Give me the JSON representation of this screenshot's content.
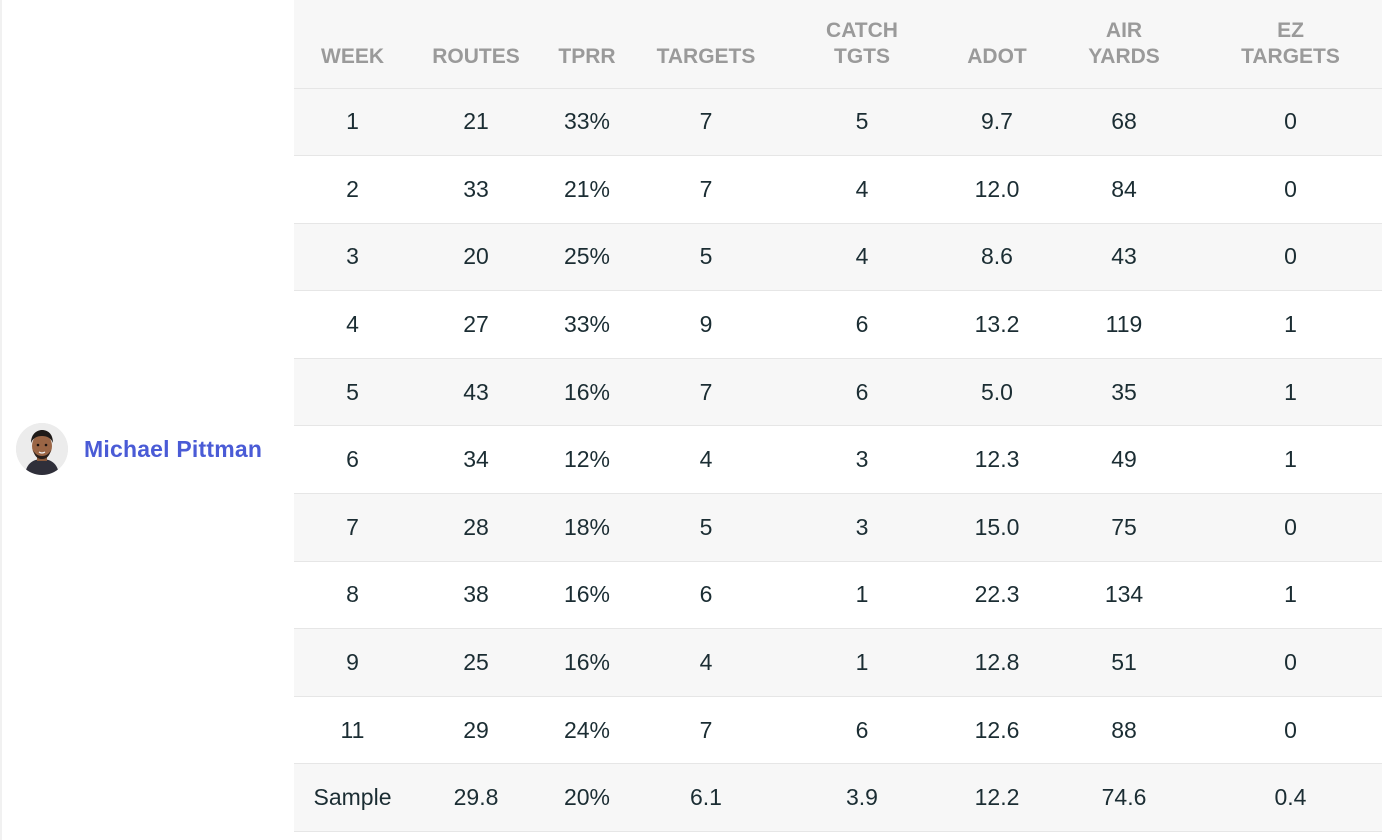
{
  "player": {
    "name": "Michael Pittman",
    "avatar_icon": "player-headshot-icon"
  },
  "table": {
    "headers": {
      "week": "WEEK",
      "routes": "ROUTES",
      "tprr": "TPRR",
      "targets": "TARGETS",
      "catch_tgts": "CATCH\nTGTS",
      "adot": "ADOT",
      "air_yards": "AIR\nYARDS",
      "ez_targets": "EZ\nTARGETS"
    },
    "rows": [
      {
        "week": "1",
        "routes": "21",
        "tprr": "33%",
        "targets": "7",
        "catch_tgts": "5",
        "adot": "9.7",
        "air_yards": "68",
        "ez_targets": "0"
      },
      {
        "week": "2",
        "routes": "33",
        "tprr": "21%",
        "targets": "7",
        "catch_tgts": "4",
        "adot": "12.0",
        "air_yards": "84",
        "ez_targets": "0"
      },
      {
        "week": "3",
        "routes": "20",
        "tprr": "25%",
        "targets": "5",
        "catch_tgts": "4",
        "adot": "8.6",
        "air_yards": "43",
        "ez_targets": "0"
      },
      {
        "week": "4",
        "routes": "27",
        "tprr": "33%",
        "targets": "9",
        "catch_tgts": "6",
        "adot": "13.2",
        "air_yards": "119",
        "ez_targets": "1"
      },
      {
        "week": "5",
        "routes": "43",
        "tprr": "16%",
        "targets": "7",
        "catch_tgts": "6",
        "adot": "5.0",
        "air_yards": "35",
        "ez_targets": "1"
      },
      {
        "week": "6",
        "routes": "34",
        "tprr": "12%",
        "targets": "4",
        "catch_tgts": "3",
        "adot": "12.3",
        "air_yards": "49",
        "ez_targets": "1"
      },
      {
        "week": "7",
        "routes": "28",
        "tprr": "18%",
        "targets": "5",
        "catch_tgts": "3",
        "adot": "15.0",
        "air_yards": "75",
        "ez_targets": "0"
      },
      {
        "week": "8",
        "routes": "38",
        "tprr": "16%",
        "targets": "6",
        "catch_tgts": "1",
        "adot": "22.3",
        "air_yards": "134",
        "ez_targets": "1"
      },
      {
        "week": "9",
        "routes": "25",
        "tprr": "16%",
        "targets": "4",
        "catch_tgts": "1",
        "adot": "12.8",
        "air_yards": "51",
        "ez_targets": "0"
      },
      {
        "week": "11",
        "routes": "29",
        "tprr": "24%",
        "targets": "7",
        "catch_tgts": "6",
        "adot": "12.6",
        "air_yards": "88",
        "ez_targets": "0"
      }
    ],
    "sample": {
      "week": "Sample",
      "routes": "29.8",
      "tprr": "20%",
      "targets": "6.1",
      "catch_tgts": "3.9",
      "adot": "12.2",
      "air_yards": "74.6",
      "ez_targets": "0.4"
    }
  },
  "colors": {
    "player_link": "#4a5bd6",
    "header_text": "#9a9a9a",
    "cell_text": "#1b2d33",
    "stripe": "#f7f7f7"
  }
}
